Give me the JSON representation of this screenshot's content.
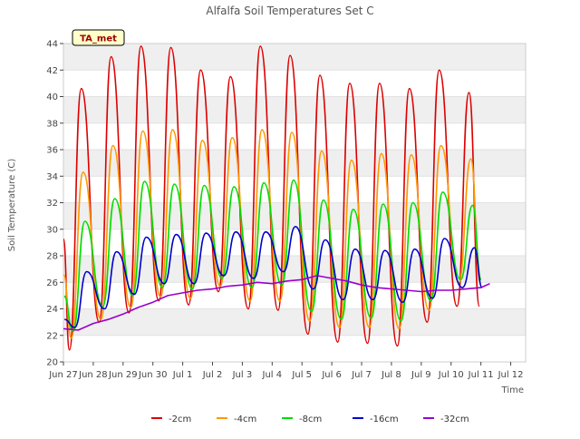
{
  "chart_data": {
    "type": "line",
    "title": "Alfalfa Soil Temperatures Set C",
    "xlabel": "Time",
    "ylabel": "Soil Temperature (C)",
    "ylim": [
      20,
      44
    ],
    "xlim": [
      0,
      15.5
    ],
    "x_ticks": [
      {
        "x": 0,
        "label": "Jun 27"
      },
      {
        "x": 1,
        "label": "Jun 28"
      },
      {
        "x": 2,
        "label": "Jun 29"
      },
      {
        "x": 3,
        "label": "Jun 30"
      },
      {
        "x": 4,
        "label": "Jul 1"
      },
      {
        "x": 5,
        "label": "Jul 2"
      },
      {
        "x": 6,
        "label": "Jul 3"
      },
      {
        "x": 7,
        "label": "Jul 4"
      },
      {
        "x": 8,
        "label": "Jul 5"
      },
      {
        "x": 9,
        "label": "Jul 6"
      },
      {
        "x": 10,
        "label": "Jul 7"
      },
      {
        "x": 11,
        "label": "Jul 8"
      },
      {
        "x": 12,
        "label": "Jul 9"
      },
      {
        "x": 13,
        "label": "Jul 10"
      },
      {
        "x": 14,
        "label": "Jul 11"
      },
      {
        "x": 15,
        "label": "Jul 12"
      }
    ],
    "y_ticks": [
      20,
      22,
      24,
      26,
      28,
      30,
      32,
      34,
      36,
      38,
      40,
      42,
      44
    ],
    "grid": "horizontal bands",
    "legend_position": "bottom",
    "annotation": "TA_met",
    "series": [
      {
        "name": "-2cm",
        "color": "#dd0000",
        "width": 1.6,
        "maxima": [
          40.6,
          43.0,
          43.8,
          43.7,
          42.0,
          41.5,
          43.8,
          43.1,
          41.6,
          41.0,
          41.0,
          40.6,
          42.0,
          40.3
        ],
        "minima": [
          20.9,
          23.0,
          23.7,
          24.6,
          24.3,
          25.3,
          24.0,
          23.9,
          22.1,
          21.5,
          21.4,
          21.2,
          23.0,
          24.2
        ]
      },
      {
        "name": "-4cm",
        "color": "#ff9900",
        "width": 1.6,
        "maxima": [
          34.3,
          36.3,
          37.4,
          37.5,
          36.7,
          36.9,
          37.5,
          37.3,
          35.9,
          35.2,
          35.7,
          35.6,
          36.3,
          35.3
        ],
        "minima": [
          21.8,
          23.2,
          24.1,
          24.9,
          24.8,
          25.7,
          24.6,
          24.6,
          23.1,
          22.6,
          22.6,
          22.5,
          23.9,
          26.0
        ]
      },
      {
        "name": "-8cm",
        "color": "#00dd00",
        "width": 1.6,
        "maxima": [
          30.6,
          32.3,
          33.6,
          33.4,
          33.3,
          33.2,
          33.5,
          33.7,
          32.2,
          31.5,
          31.9,
          32.0,
          32.8,
          31.8
        ],
        "minima": [
          22.3,
          24.2,
          25.0,
          25.6,
          25.5,
          26.3,
          25.6,
          25.8,
          23.8,
          23.2,
          23.3,
          23.1,
          24.6,
          26.2
        ]
      },
      {
        "name": "-16cm",
        "color": "#0000cc",
        "width": 1.6,
        "maxima": [
          26.8,
          28.3,
          29.4,
          29.6,
          29.7,
          29.8,
          29.8,
          30.2,
          29.2,
          28.5,
          28.4,
          28.5,
          29.3,
          28.6
        ],
        "minima": [
          22.6,
          24.0,
          25.1,
          25.9,
          25.9,
          26.5,
          26.3,
          26.8,
          25.5,
          24.7,
          24.7,
          24.5,
          24.8,
          25.6
        ]
      },
      {
        "name": "-32cm",
        "color": "#9900cc",
        "width": 1.6,
        "points": [
          [
            0.0,
            22.5
          ],
          [
            0.5,
            22.4
          ],
          [
            1.0,
            22.9
          ],
          [
            1.5,
            23.2
          ],
          [
            2.0,
            23.6
          ],
          [
            2.5,
            24.1
          ],
          [
            3.0,
            24.5
          ],
          [
            3.5,
            25.0
          ],
          [
            4.0,
            25.2
          ],
          [
            4.5,
            25.4
          ],
          [
            5.0,
            25.5
          ],
          [
            5.5,
            25.7
          ],
          [
            6.0,
            25.8
          ],
          [
            6.5,
            26.0
          ],
          [
            7.0,
            25.9
          ],
          [
            7.5,
            26.1
          ],
          [
            8.0,
            26.2
          ],
          [
            8.5,
            26.5
          ],
          [
            9.0,
            26.3
          ],
          [
            9.5,
            26.1
          ],
          [
            10.0,
            25.8
          ],
          [
            10.5,
            25.6
          ],
          [
            11.0,
            25.5
          ],
          [
            11.5,
            25.4
          ],
          [
            12.0,
            25.3
          ],
          [
            12.5,
            25.4
          ],
          [
            13.0,
            25.4
          ],
          [
            13.5,
            25.5
          ],
          [
            14.0,
            25.6
          ],
          [
            14.3,
            25.9
          ]
        ]
      }
    ]
  }
}
